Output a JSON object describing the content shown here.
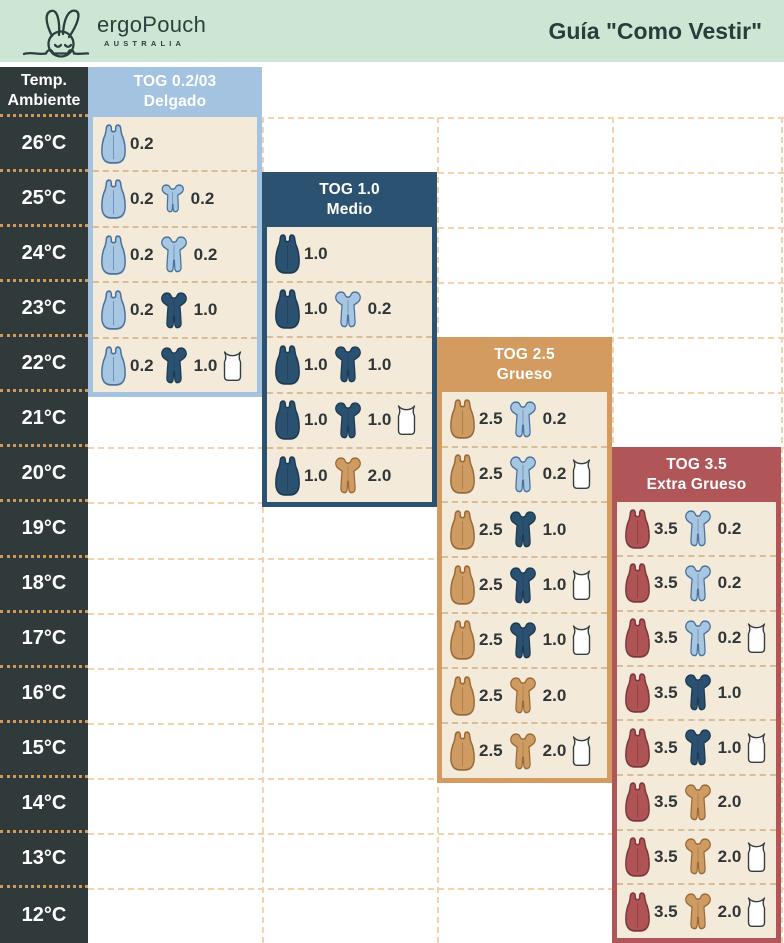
{
  "banner": {
    "brand": "ergoPouch",
    "brand_sub": "AUSTRALIA",
    "title": "Guía \"Como Vestir\""
  },
  "temp_header": {
    "line1": "Temp.",
    "line2": "Ambiente"
  },
  "temperatures": [
    "26°C",
    "25°C",
    "24°C",
    "23°C",
    "22°C",
    "21°C",
    "20°C",
    "19°C",
    "18°C",
    "17°C",
    "16°C",
    "15°C",
    "14°C",
    "13°C",
    "12°C"
  ],
  "colors": {
    "banner_bg": "#cde6d4",
    "banner_text": "#273f3c",
    "temp_bg": "#303a3b",
    "temp_text": "#ffffff",
    "temp_divider": "#d09a5e",
    "gridline": "#f2d3ad",
    "cell_bg": "#f3ead9",
    "cell_divider": "#d8bd98",
    "value_text": "#2f3638",
    "garments": {
      "lightblue": {
        "fill": "#a6c6e2",
        "stroke": "#4a729d"
      },
      "navy": {
        "fill": "#2b5170",
        "stroke": "#1d3a52"
      },
      "tan": {
        "fill": "#ce9c63",
        "stroke": "#9a6a38"
      },
      "red": {
        "fill": "#af5355",
        "stroke": "#7c393d"
      },
      "white": {
        "fill": "#ffffff",
        "stroke": "#343d3f"
      }
    }
  },
  "columns": [
    {
      "id": "tog-0.2",
      "title_line1": "TOG 0.2/03",
      "title_line2": "Delgado",
      "colors": {
        "header_bg": "#a3c3e0",
        "header_text": "#ffffff",
        "border": "#a3c3e0"
      },
      "rows": [
        {
          "temp": "26°C",
          "items": [
            {
              "icon": "sleep-bag",
              "color": "lightblue",
              "tog": "0.2"
            }
          ]
        },
        {
          "temp": "25°C",
          "items": [
            {
              "icon": "sleep-bag",
              "color": "lightblue",
              "tog": "0.2"
            },
            {
              "icon": "romper-short",
              "color": "lightblue",
              "tog": "0.2"
            }
          ]
        },
        {
          "temp": "24°C",
          "items": [
            {
              "icon": "sleep-bag",
              "color": "lightblue",
              "tog": "0.2"
            },
            {
              "icon": "romper",
              "color": "lightblue",
              "tog": "0.2"
            }
          ]
        },
        {
          "temp": "23°C",
          "items": [
            {
              "icon": "sleep-bag",
              "color": "lightblue",
              "tog": "0.2"
            },
            {
              "icon": "romper",
              "color": "navy",
              "tog": "1.0"
            }
          ]
        },
        {
          "temp": "22°C",
          "items": [
            {
              "icon": "sleep-bag",
              "color": "lightblue",
              "tog": "0.2"
            },
            {
              "icon": "romper",
              "color": "navy",
              "tog": "1.0"
            },
            {
              "icon": "singlet",
              "color": "white"
            }
          ]
        }
      ]
    },
    {
      "id": "tog-1.0",
      "title_line1": "TOG 1.0",
      "title_line2": "Medio",
      "colors": {
        "header_bg": "#2c5271",
        "header_text": "#ffffff",
        "border": "#2c5271"
      },
      "rows": [
        {
          "temp": "24°C",
          "items": [
            {
              "icon": "sleep-bag",
              "color": "navy",
              "tog": "1.0"
            }
          ]
        },
        {
          "temp": "23°C",
          "items": [
            {
              "icon": "sleep-bag",
              "color": "navy",
              "tog": "1.0"
            },
            {
              "icon": "romper",
              "color": "lightblue",
              "tog": "0.2"
            }
          ]
        },
        {
          "temp": "22°C",
          "items": [
            {
              "icon": "sleep-bag",
              "color": "navy",
              "tog": "1.0"
            },
            {
              "icon": "romper",
              "color": "navy",
              "tog": "1.0"
            }
          ]
        },
        {
          "temp": "21°C",
          "items": [
            {
              "icon": "sleep-bag",
              "color": "navy",
              "tog": "1.0"
            },
            {
              "icon": "romper",
              "color": "navy",
              "tog": "1.0"
            },
            {
              "icon": "singlet",
              "color": "white"
            }
          ]
        },
        {
          "temp": "20°C",
          "items": [
            {
              "icon": "sleep-bag",
              "color": "navy",
              "tog": "1.0"
            },
            {
              "icon": "romper",
              "color": "tan",
              "tog": "2.0"
            }
          ]
        }
      ]
    },
    {
      "id": "tog-2.5",
      "title_line1": "TOG 2.5",
      "title_line2": "Grueso",
      "colors": {
        "header_bg": "#d39b60",
        "header_text": "#ffffff",
        "border": "#d39b60"
      },
      "rows": [
        {
          "temp": "21°C",
          "items": [
            {
              "icon": "sleep-bag",
              "color": "tan",
              "tog": "2.5"
            },
            {
              "icon": "romper",
              "color": "lightblue",
              "tog": "0.2"
            }
          ]
        },
        {
          "temp": "20°C",
          "items": [
            {
              "icon": "sleep-bag",
              "color": "tan",
              "tog": "2.5"
            },
            {
              "icon": "romper",
              "color": "lightblue",
              "tog": "0.2"
            },
            {
              "icon": "singlet",
              "color": "white"
            }
          ]
        },
        {
          "temp": "19°C",
          "items": [
            {
              "icon": "sleep-bag",
              "color": "tan",
              "tog": "2.5"
            },
            {
              "icon": "romper",
              "color": "navy",
              "tog": "1.0"
            }
          ]
        },
        {
          "temp": "18°C",
          "items": [
            {
              "icon": "sleep-bag",
              "color": "tan",
              "tog": "2.5"
            },
            {
              "icon": "romper",
              "color": "navy",
              "tog": "1.0"
            },
            {
              "icon": "singlet",
              "color": "white"
            }
          ]
        },
        {
          "temp": "17°C",
          "items": [
            {
              "icon": "sleep-bag",
              "color": "tan",
              "tog": "2.5"
            },
            {
              "icon": "romper",
              "color": "navy",
              "tog": "1.0"
            },
            {
              "icon": "singlet",
              "color": "white"
            }
          ]
        },
        {
          "temp": "16°C",
          "items": [
            {
              "icon": "sleep-bag",
              "color": "tan",
              "tog": "2.5"
            },
            {
              "icon": "romper",
              "color": "tan",
              "tog": "2.0"
            }
          ]
        },
        {
          "temp": "15°C",
          "items": [
            {
              "icon": "sleep-bag",
              "color": "tan",
              "tog": "2.5"
            },
            {
              "icon": "romper",
              "color": "tan",
              "tog": "2.0"
            },
            {
              "icon": "singlet",
              "color": "white"
            }
          ]
        }
      ]
    },
    {
      "id": "tog-3.5",
      "title_line1": "TOG 3.5",
      "title_line2": "Extra Grueso",
      "colors": {
        "header_bg": "#b05659",
        "header_text": "#ffffff",
        "border": "#b05659"
      },
      "rows": [
        {
          "temp": "19°C",
          "items": [
            {
              "icon": "sleep-bag",
              "color": "red",
              "tog": "3.5"
            },
            {
              "icon": "romper",
              "color": "lightblue",
              "tog": "0.2"
            }
          ]
        },
        {
          "temp": "18°C",
          "items": [
            {
              "icon": "sleep-bag",
              "color": "red",
              "tog": "3.5"
            },
            {
              "icon": "romper",
              "color": "lightblue",
              "tog": "0.2"
            }
          ]
        },
        {
          "temp": "17°C",
          "items": [
            {
              "icon": "sleep-bag",
              "color": "red",
              "tog": "3.5"
            },
            {
              "icon": "romper",
              "color": "lightblue",
              "tog": "0.2"
            },
            {
              "icon": "singlet",
              "color": "white"
            }
          ]
        },
        {
          "temp": "16°C",
          "items": [
            {
              "icon": "sleep-bag",
              "color": "red",
              "tog": "3.5"
            },
            {
              "icon": "romper",
              "color": "navy",
              "tog": "1.0"
            }
          ]
        },
        {
          "temp": "15°C",
          "items": [
            {
              "icon": "sleep-bag",
              "color": "red",
              "tog": "3.5"
            },
            {
              "icon": "romper",
              "color": "navy",
              "tog": "1.0"
            },
            {
              "icon": "singlet",
              "color": "white"
            }
          ]
        },
        {
          "temp": "14°C",
          "items": [
            {
              "icon": "sleep-bag",
              "color": "red",
              "tog": "3.5"
            },
            {
              "icon": "romper",
              "color": "tan",
              "tog": "2.0"
            }
          ]
        },
        {
          "temp": "13°C",
          "items": [
            {
              "icon": "sleep-bag",
              "color": "red",
              "tog": "3.5"
            },
            {
              "icon": "romper",
              "color": "tan",
              "tog": "2.0"
            },
            {
              "icon": "singlet",
              "color": "white"
            }
          ]
        },
        {
          "temp": "12°C",
          "items": [
            {
              "icon": "sleep-bag",
              "color": "red",
              "tog": "3.5"
            },
            {
              "icon": "romper",
              "color": "tan",
              "tog": "2.0"
            },
            {
              "icon": "singlet",
              "color": "white"
            }
          ]
        }
      ]
    }
  ],
  "chart_data": {
    "type": "table",
    "title": "Guía \"Como Vestir\" — ergoPouch TOG dressing guide",
    "row_header_label": "Temp. Ambiente",
    "categories": [
      "26°C",
      "25°C",
      "24°C",
      "23°C",
      "22°C",
      "21°C",
      "20°C",
      "19°C",
      "18°C",
      "17°C",
      "16°C",
      "15°C",
      "14°C",
      "13°C",
      "12°C"
    ],
    "series": [
      {
        "name": "TOG 0.2/03 Delgado",
        "values": [
          "bag 0.2",
          "bag 0.2 + short romper 0.2",
          "bag 0.2 + romper 0.2",
          "bag 0.2 + romper 1.0",
          "bag 0.2 + romper 1.0 + singlet",
          null,
          null,
          null,
          null,
          null,
          null,
          null,
          null,
          null,
          null
        ]
      },
      {
        "name": "TOG 1.0 Medio",
        "values": [
          null,
          null,
          "bag 1.0",
          "bag 1.0 + romper 0.2",
          "bag 1.0 + romper 1.0",
          "bag 1.0 + romper 1.0 + singlet",
          "bag 1.0 + romper 2.0",
          null,
          null,
          null,
          null,
          null,
          null,
          null,
          null
        ]
      },
      {
        "name": "TOG 2.5 Grueso",
        "values": [
          null,
          null,
          null,
          null,
          null,
          "bag 2.5 + romper 0.2",
          "bag 2.5 + romper 0.2 + singlet",
          "bag 2.5 + romper 1.0",
          "bag 2.5 + romper 1.0 + singlet",
          "bag 2.5 + romper 1.0 + singlet",
          "bag 2.5 + romper 2.0",
          "bag 2.5 + romper 2.0 + singlet",
          null,
          null,
          null
        ]
      },
      {
        "name": "TOG 3.5 Extra Grueso",
        "values": [
          null,
          null,
          null,
          null,
          null,
          null,
          null,
          "bag 3.5 + romper 0.2",
          "bag 3.5 + romper 0.2",
          "bag 3.5 + romper 0.2 + singlet",
          "bag 3.5 + romper 1.0",
          "bag 3.5 + romper 1.0 + singlet",
          "bag 3.5 + romper 2.0",
          "bag 3.5 + romper 2.0 + singlet",
          "bag 3.5 + romper 2.0 + singlet"
        ]
      }
    ]
  }
}
